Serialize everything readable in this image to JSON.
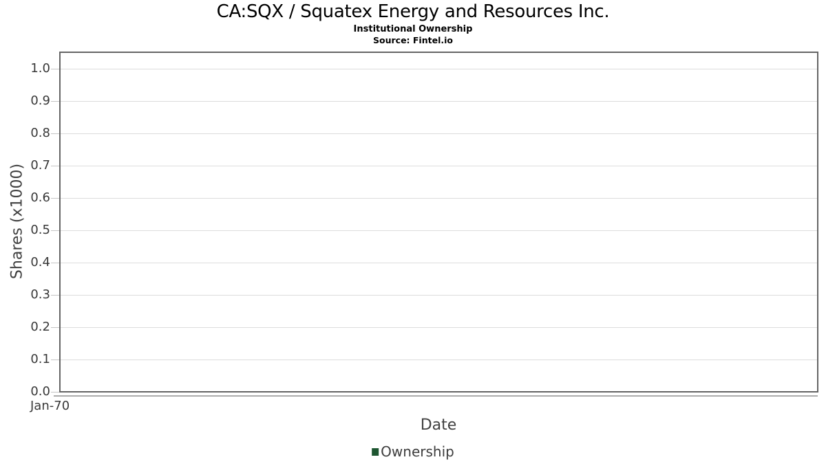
{
  "chart_data": {
    "type": "line",
    "title": "CA:SQX / Squatex Energy and Resources Inc.",
    "subtitle": "Institutional Ownership",
    "source": "Source: Fintel.io",
    "xlabel": "Date",
    "ylabel": "Shares (x1000)",
    "x_tick_labels": [
      "Jan-70"
    ],
    "y_tick_labels": [
      "0.0",
      "0.1",
      "0.2",
      "0.3",
      "0.4",
      "0.5",
      "0.6",
      "0.7",
      "0.8",
      "0.9",
      "1.0"
    ],
    "ylim": [
      0,
      1.05
    ],
    "grid": "horizontal",
    "legend_position": "bottom-center",
    "series": [
      {
        "name": "Ownership",
        "color": "#1e5631",
        "x": [],
        "values": []
      }
    ]
  }
}
